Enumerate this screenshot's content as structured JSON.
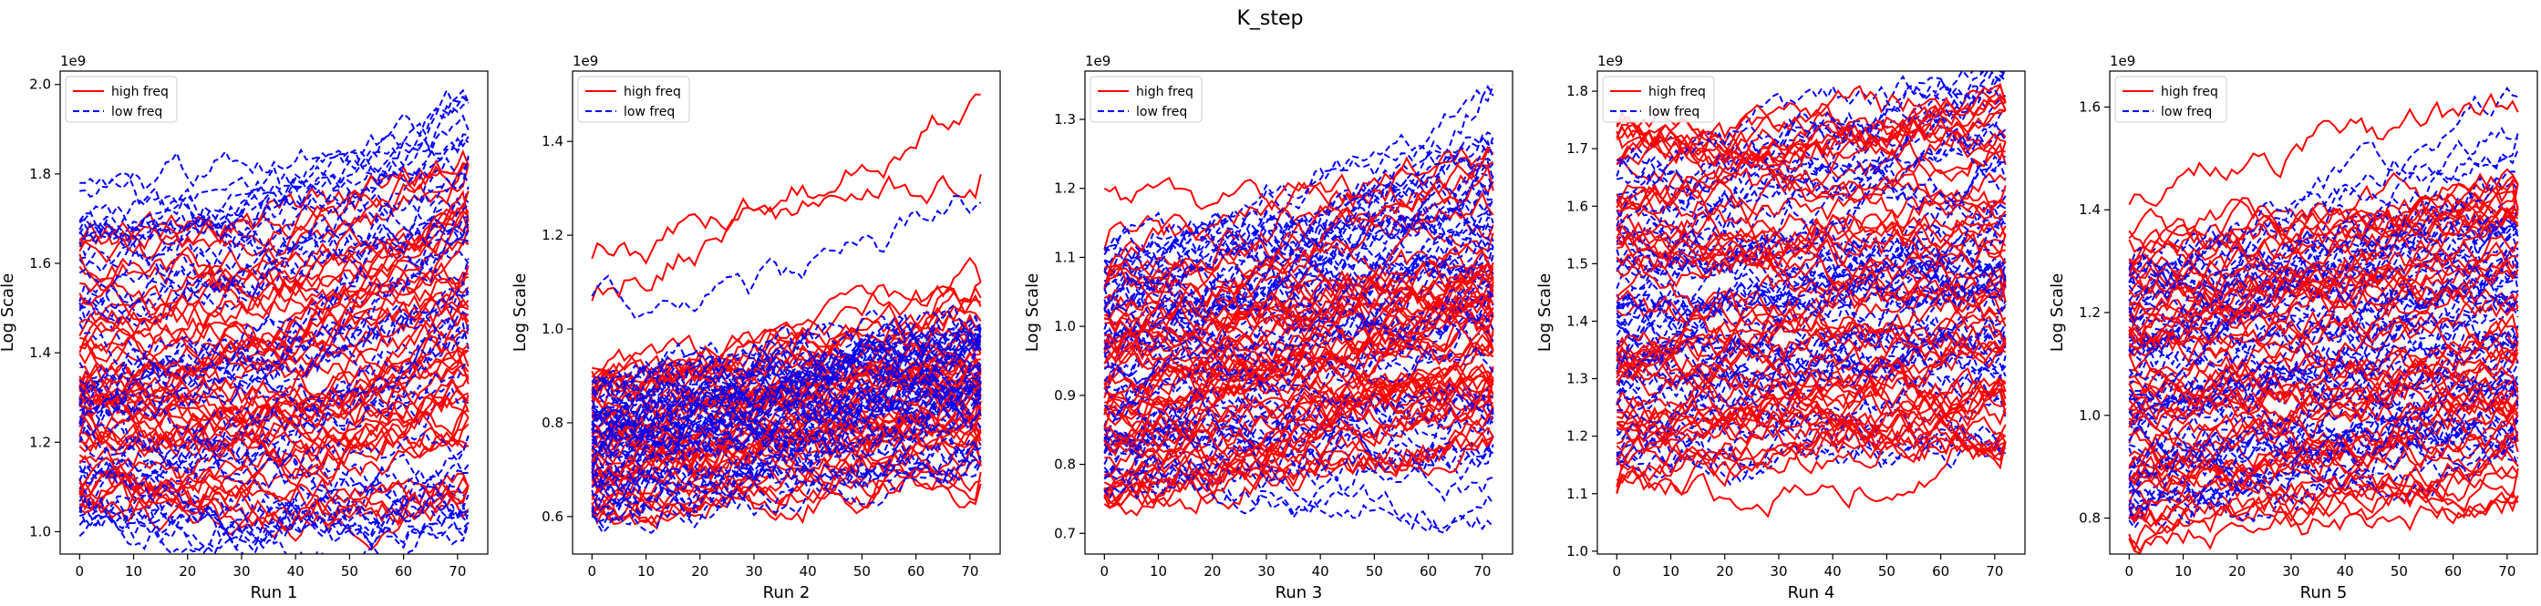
{
  "figure": {
    "suptitle": "K_step"
  },
  "legend": {
    "placement": "upper-left",
    "entries": [
      {
        "label": "high freq",
        "color": "#ff0000",
        "dash": "solid"
      },
      {
        "label": "low freq",
        "color": "#0000ff",
        "dash": "dashed"
      }
    ]
  },
  "chart_data": [
    {
      "type": "line",
      "xlabel": "Run 1",
      "ylabel": "Log Scale",
      "offset_label": "1e9",
      "xlim": [
        -3.6,
        75.6
      ],
      "ylim": [
        0.95,
        2.03
      ],
      "xticks": [
        0,
        10,
        20,
        30,
        40,
        50,
        60,
        70
      ],
      "yticks": [
        1.0,
        1.2,
        1.4,
        1.6,
        1.8,
        2.0
      ],
      "ytick_labels": [
        "1.0",
        "1.2",
        "1.4",
        "1.6",
        "1.8",
        "2.0"
      ],
      "n_points": 73,
      "series": [
        {
          "legend": "high freq",
          "count": 50,
          "start_range": [
            1.05,
            1.67
          ],
          "end_range": [
            1.1,
            1.82
          ],
          "drift": [
            -0.25,
            0.4
          ],
          "highlight": [
            {
              "start": 1.12,
              "mid": 1.0,
              "end": 1.05
            }
          ]
        },
        {
          "legend": "low freq",
          "count": 45,
          "start_range": [
            0.99,
            1.78
          ],
          "end_range": [
            1.02,
            1.96
          ],
          "drift": [
            -0.2,
            0.45
          ],
          "highlight": [
            {
              "start": 0.99,
              "mid": 1.1,
              "end": 1.02
            },
            {
              "start": 1.78,
              "mid": 1.55,
              "end": 1.96
            }
          ]
        }
      ]
    },
    {
      "type": "line",
      "xlabel": "Run 2",
      "ylabel": "Log Scale",
      "offset_label": "1e9",
      "xlim": [
        -3.6,
        75.6
      ],
      "ylim": [
        0.52,
        1.55
      ],
      "xticks": [
        0,
        10,
        20,
        30,
        40,
        50,
        60,
        70
      ],
      "yticks": [
        0.6,
        0.8,
        1.0,
        1.2,
        1.4
      ],
      "ytick_labels": [
        "0.6",
        "0.8",
        "1.0",
        "1.2",
        "1.4"
      ],
      "n_points": 73,
      "series": [
        {
          "legend": "high freq",
          "count": 50,
          "start_range": [
            0.58,
            0.92
          ],
          "end_range": [
            0.67,
            1.1
          ],
          "drift": [
            0.0,
            0.3
          ],
          "highlight": [
            {
              "start": 1.15,
              "mid": 1.22,
              "end": 1.5
            },
            {
              "start": 1.06,
              "mid": 1.3,
              "end": 1.33
            }
          ]
        },
        {
          "legend": "low freq",
          "count": 45,
          "start_range": [
            0.6,
            0.9
          ],
          "end_range": [
            0.72,
            1.0
          ],
          "drift": [
            0.02,
            0.25
          ],
          "highlight": [
            {
              "start": 1.07,
              "mid": 1.05,
              "end": 1.27
            },
            {
              "start": 0.62,
              "mid": 0.6,
              "end": 0.74
            }
          ]
        }
      ]
    },
    {
      "type": "line",
      "xlabel": "Run 3",
      "ylabel": "Log Scale",
      "offset_label": "1e9",
      "xlim": [
        -3.6,
        75.6
      ],
      "ylim": [
        0.67,
        1.37
      ],
      "xticks": [
        0,
        10,
        20,
        30,
        40,
        50,
        60,
        70
      ],
      "yticks": [
        0.7,
        0.8,
        0.9,
        1.0,
        1.1,
        1.2,
        1.3
      ],
      "ytick_labels": [
        "0.7",
        "0.8",
        "0.9",
        "1.0",
        "1.1",
        "1.2",
        "1.3"
      ],
      "n_points": 73,
      "series": [
        {
          "legend": "high freq",
          "count": 55,
          "start_range": [
            0.74,
            1.12
          ],
          "end_range": [
            0.84,
            1.25
          ],
          "drift": [
            0.0,
            0.35
          ],
          "highlight": [
            {
              "start": 1.2,
              "mid": 1.15,
              "end": 1.21
            },
            {
              "start": 0.76,
              "mid": 0.78,
              "end": 0.84
            }
          ]
        },
        {
          "legend": "low freq",
          "count": 50,
          "start_range": [
            0.76,
            1.12
          ],
          "end_range": [
            0.71,
            1.35
          ],
          "drift": [
            -0.05,
            0.38
          ],
          "highlight": [
            {
              "start": 0.8,
              "mid": 0.72,
              "end": 0.71
            },
            {
              "start": 0.92,
              "mid": 1.05,
              "end": 1.35
            }
          ]
        }
      ]
    },
    {
      "type": "line",
      "xlabel": "Run 4",
      "ylabel": "Log Scale",
      "offset_label": "1e9",
      "xlim": [
        -3.6,
        75.6
      ],
      "ylim": [
        0.995,
        1.835
      ],
      "xticks": [
        0,
        10,
        20,
        30,
        40,
        50,
        60,
        70
      ],
      "yticks": [
        1.0,
        1.1,
        1.2,
        1.3,
        1.4,
        1.5,
        1.6,
        1.7,
        1.8
      ],
      "ytick_labels": [
        "1.0",
        "1.1",
        "1.2",
        "1.3",
        "1.4",
        "1.5",
        "1.6",
        "1.7",
        "1.8"
      ],
      "n_points": 73,
      "series": [
        {
          "legend": "high freq",
          "count": 55,
          "start_range": [
            1.1,
            1.74
          ],
          "end_range": [
            1.19,
            1.78
          ],
          "drift": [
            -0.2,
            0.3
          ],
          "highlight": [
            {
              "start": 1.1,
              "mid": 1.05,
              "end": 1.22
            },
            {
              "start": 1.74,
              "mid": 1.62,
              "end": 1.72
            }
          ]
        },
        {
          "legend": "low freq",
          "count": 50,
          "start_range": [
            1.14,
            1.68
          ],
          "end_range": [
            1.17,
            1.84
          ],
          "drift": [
            -0.15,
            0.4
          ],
          "highlight": [
            {
              "start": 1.15,
              "mid": 1.22,
              "end": 1.18
            },
            {
              "start": 1.62,
              "mid": 1.58,
              "end": 1.84
            }
          ]
        }
      ]
    },
    {
      "type": "line",
      "xlabel": "Run 5",
      "ylabel": "Log Scale",
      "offset_label": "1e9",
      "xlim": [
        -3.6,
        75.6
      ],
      "ylim": [
        0.73,
        1.67
      ],
      "xticks": [
        0,
        10,
        20,
        30,
        40,
        50,
        60,
        70
      ],
      "yticks": [
        0.8,
        1.0,
        1.2,
        1.4,
        1.6
      ],
      "ytick_labels": [
        "0.8",
        "1.0",
        "1.2",
        "1.4",
        "1.6"
      ],
      "n_points": 73,
      "series": [
        {
          "legend": "high freq",
          "count": 55,
          "start_range": [
            0.76,
            1.36
          ],
          "end_range": [
            0.83,
            1.45
          ],
          "drift": [
            -0.05,
            0.3
          ],
          "highlight": [
            {
              "start": 1.41,
              "mid": 1.55,
              "end": 1.59
            },
            {
              "start": 0.76,
              "mid": 0.79,
              "end": 0.83
            }
          ]
        },
        {
          "legend": "low freq",
          "count": 50,
          "start_range": [
            0.79,
            1.3
          ],
          "end_range": [
            0.9,
            1.62
          ],
          "drift": [
            0.0,
            0.35
          ],
          "highlight": [
            {
              "start": 0.8,
              "mid": 0.88,
              "end": 0.96
            },
            {
              "start": 1.2,
              "mid": 1.45,
              "end": 1.62
            }
          ]
        }
      ]
    }
  ]
}
